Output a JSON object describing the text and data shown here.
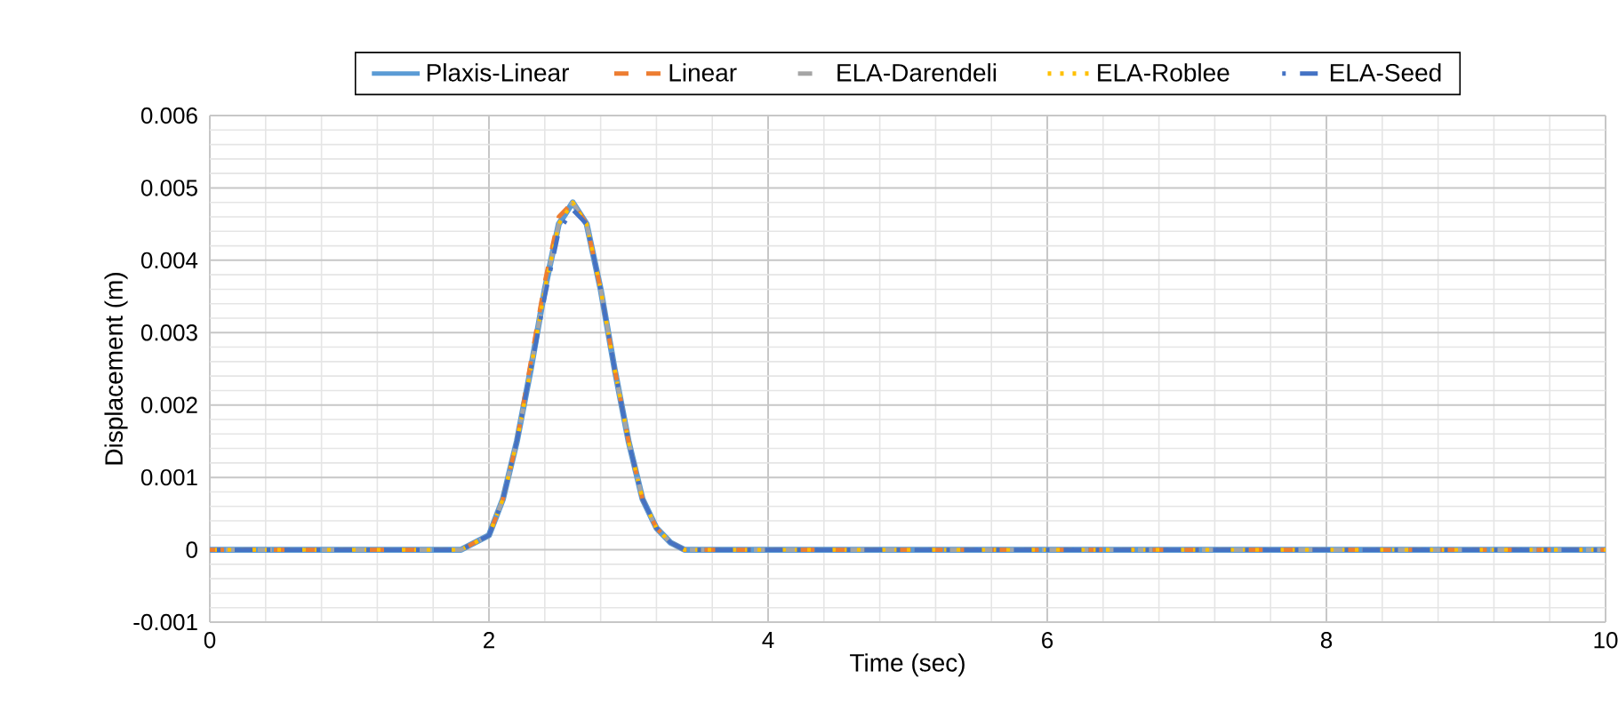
{
  "chart_data": {
    "type": "line",
    "xlabel": "Time (sec)",
    "ylabel": "Displacement (m)",
    "xlim": [
      0,
      10
    ],
    "xticks": [
      0,
      2,
      4,
      6,
      8,
      10
    ],
    "ylim": [
      -0.001,
      0.006
    ],
    "yticks": [
      {
        "value": -0.001,
        "label": "-0.001"
      },
      {
        "value": 0,
        "label": "0"
      },
      {
        "value": 0.001,
        "label": "0.001"
      },
      {
        "value": 0.002,
        "label": "0.002"
      },
      {
        "value": 0.003,
        "label": "0.003"
      },
      {
        "value": 0.004,
        "label": "0.004"
      },
      {
        "value": 0.005,
        "label": "0.005"
      },
      {
        "value": 0.006,
        "label": "0.006"
      }
    ],
    "grid": true,
    "legend": "top",
    "marker": "none",
    "x": [
      0,
      1.5,
      1.8,
      1.9,
      2.0,
      2.1,
      2.2,
      2.3,
      2.4,
      2.5,
      2.6,
      2.7,
      2.8,
      2.9,
      3.0,
      3.1,
      3.2,
      3.3,
      3.4,
      3.6,
      10
    ],
    "series": [
      {
        "name": "Plaxis-Linear",
        "color": "#5b9bd5",
        "line_style": "solid",
        "values": [
          0,
          0,
          0,
          0.0001,
          0.0002,
          0.0007,
          0.0015,
          0.0025,
          0.0036,
          0.0045,
          0.0048,
          0.0045,
          0.0036,
          0.0025,
          0.0015,
          0.0007,
          0.0003,
          0.0001,
          0,
          0,
          0
        ]
      },
      {
        "name": "Linear",
        "color": "#ed7d31",
        "line_style": "dashed",
        "values": [
          0,
          0,
          0,
          0.0001,
          0.0002,
          0.0007,
          0.0015,
          0.0026,
          0.0037,
          0.0046,
          0.0048,
          0.0045,
          0.0036,
          0.0025,
          0.0015,
          0.0007,
          0.0003,
          0.0001,
          0,
          0,
          0
        ]
      },
      {
        "name": "ELA-Darendeli",
        "color": "#a5a5a5",
        "line_style": "dashed",
        "values": [
          0,
          0,
          0,
          0.0001,
          0.0002,
          0.0007,
          0.0015,
          0.0025,
          0.0036,
          0.0045,
          0.0048,
          0.0045,
          0.0036,
          0.0025,
          0.0015,
          0.0007,
          0.0003,
          0.0001,
          0,
          0,
          0
        ]
      },
      {
        "name": "ELA-Roblee",
        "color": "#ffc000",
        "line_style": "dotted",
        "values": [
          0,
          0,
          0,
          0.0001,
          0.0002,
          0.0007,
          0.0015,
          0.0025,
          0.0036,
          0.0045,
          0.0048,
          0.0045,
          0.0036,
          0.0025,
          0.0015,
          0.0007,
          0.0003,
          0.0001,
          0,
          0,
          0
        ]
      },
      {
        "name": "ELA-Seed",
        "color": "#4472c4",
        "line_style": "dashdot",
        "values": [
          0,
          0,
          0,
          0.0001,
          0.0002,
          0.0007,
          0.0015,
          0.0025,
          0.0035,
          0.0044,
          0.0047,
          0.0045,
          0.0036,
          0.0025,
          0.0015,
          0.0007,
          0.0003,
          0.0001,
          0,
          0,
          0
        ]
      }
    ]
  }
}
